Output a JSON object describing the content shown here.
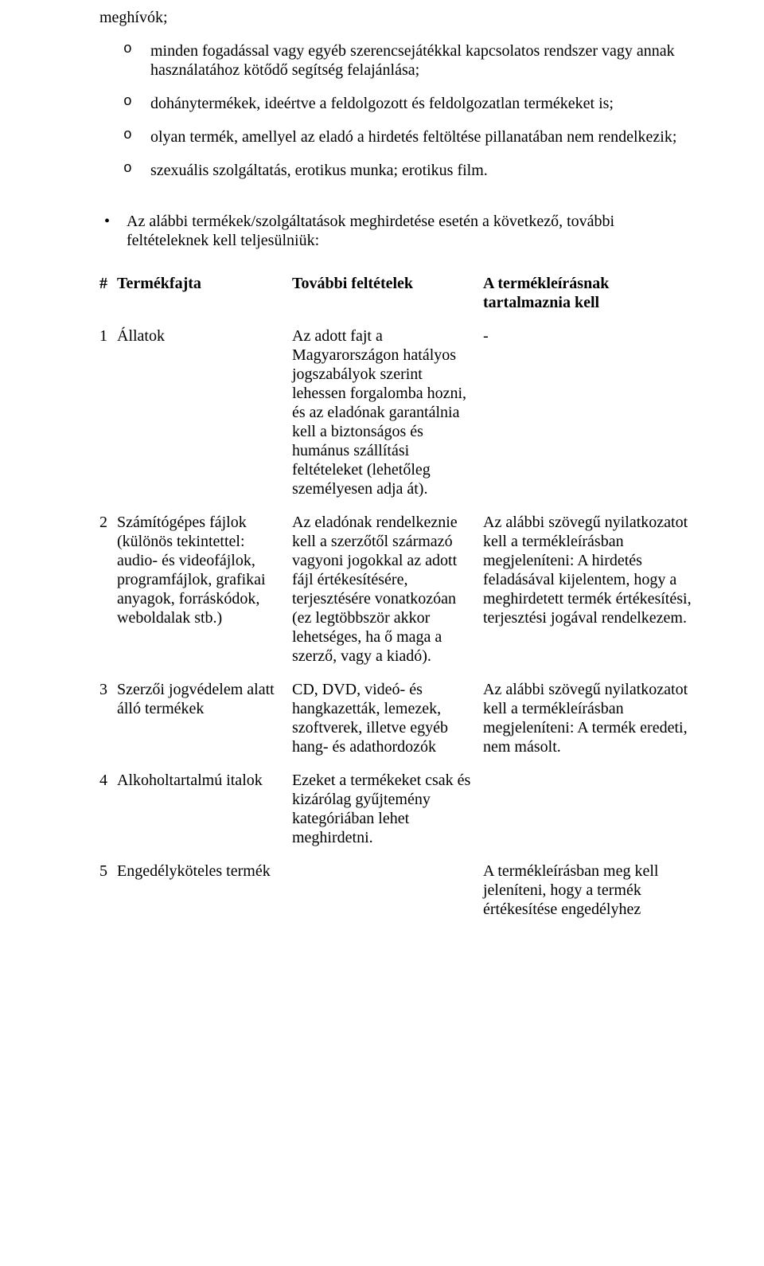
{
  "continuation": "meghívók;",
  "list_items": [
    "minden fogadással vagy egyéb szerencsejátékkal kapcsolatos rendszer vagy annak használatához kötődő segítség felajánlása;",
    "dohánytermékek, ideértve a feldolgozott és feldolgozatlan termékeket is;",
    "olyan termék, amellyel az eladó a hirdetés feltöltése pillanatában nem rendelkezik;",
    "szexuális szolgáltatás, erotikus munka; erotikus film."
  ],
  "bullet_intro": "Az alábbi termékek/szolgáltatások meghirdetése esetén a következő, további feltételeknek kell teljesülniük:",
  "table": {
    "headers": {
      "num": "#",
      "type": "Termékfajta",
      "cond": "További feltételek",
      "desc": "A termékleírásnak tartalmaznia kell"
    },
    "rows": [
      {
        "num": "1",
        "type": "Állatok",
        "cond": "Az adott fajt a Magyarországon hatályos jogszabályok szerint lehessen forgalomba hozni, és az eladónak garantálnia kell a biztonságos és humánus szállítási feltételeket (lehetőleg személyesen adja át).",
        "desc": "-"
      },
      {
        "num": "2",
        "type": "Számítógépes fájlok (különös tekintettel: audio- és videofájlok, programfájlok, grafikai anyagok, forráskódok, weboldalak stb.)",
        "cond": "Az eladónak rendelkeznie kell a szerzőtől származó vagyoni jogokkal az adott fájl értékesítésére, terjesztésére vonatkozóan (ez legtöbbször akkor lehetséges, ha ő maga a szerző, vagy a kiadó).",
        "desc": "Az alábbi szövegű nyilatkozatot kell a termékleírásban megjeleníteni:\nA hirdetés feladásával kijelentem, hogy a meghirdetett termék értékesítési, terjesztési jogával rendelkezem."
      },
      {
        "num": "3",
        "type": "Szerzői jogvédelem alatt álló termékek",
        "cond": "CD, DVD, videó- és hangkazetták, lemezek, szoftverek, illetve egyéb hang- és adathordozók",
        "desc": "Az alábbi szövegű nyilatkozatot kell a termékleírásban megjeleníteni:\nA termék eredeti, nem másolt."
      },
      {
        "num": "4",
        "type": "Alkoholtartalmú italok",
        "cond": "Ezeket a termékeket csak és kizárólag gyűjtemény kategóriában lehet meghirdetni.",
        "desc": ""
      },
      {
        "num": "5",
        "type": "Engedélyköteles termék",
        "cond": "",
        "desc": "A termékleírásban meg kell jeleníteni, hogy a termék értékesítése engedélyhez"
      }
    ]
  }
}
